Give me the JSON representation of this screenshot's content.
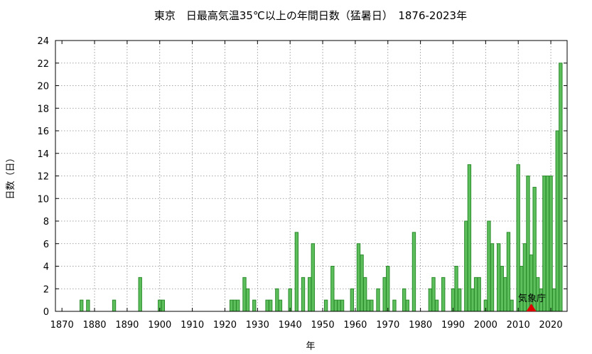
{
  "chart_data": {
    "type": "bar",
    "title": "東京　日最高気温35℃以上の年間日数（猛暑日）　1876-2023年",
    "xlabel": "年",
    "ylabel": "日数（日）",
    "xlim": [
      1868,
      2025
    ],
    "ylim": [
      0,
      24
    ],
    "x_ticks": [
      1870,
      1880,
      1890,
      1900,
      1910,
      1920,
      1930,
      1940,
      1950,
      1960,
      1970,
      1980,
      1990,
      2000,
      2010,
      2020
    ],
    "y_ticks": [
      0,
      2,
      4,
      6,
      8,
      10,
      12,
      14,
      16,
      18,
      20,
      22,
      24
    ],
    "grid": true,
    "bar_color": "#5cbf5c",
    "bar_edge_color": "#2a8a2a",
    "annotation": {
      "label": "気象庁",
      "x": 2014,
      "marker_color": "#dd0000"
    },
    "points": [
      {
        "x": 1876,
        "y": 1
      },
      {
        "x": 1878,
        "y": 1
      },
      {
        "x": 1886,
        "y": 1
      },
      {
        "x": 1894,
        "y": 3
      },
      {
        "x": 1900,
        "y": 1
      },
      {
        "x": 1901,
        "y": 1
      },
      {
        "x": 1922,
        "y": 1
      },
      {
        "x": 1923,
        "y": 1
      },
      {
        "x": 1924,
        "y": 1
      },
      {
        "x": 1926,
        "y": 3
      },
      {
        "x": 1927,
        "y": 2
      },
      {
        "x": 1929,
        "y": 1
      },
      {
        "x": 1933,
        "y": 1
      },
      {
        "x": 1934,
        "y": 1
      },
      {
        "x": 1936,
        "y": 2
      },
      {
        "x": 1937,
        "y": 1
      },
      {
        "x": 1940,
        "y": 2
      },
      {
        "x": 1942,
        "y": 7
      },
      {
        "x": 1944,
        "y": 3
      },
      {
        "x": 1946,
        "y": 3
      },
      {
        "x": 1947,
        "y": 6
      },
      {
        "x": 1951,
        "y": 1
      },
      {
        "x": 1953,
        "y": 4
      },
      {
        "x": 1954,
        "y": 1
      },
      {
        "x": 1955,
        "y": 1
      },
      {
        "x": 1956,
        "y": 1
      },
      {
        "x": 1959,
        "y": 2
      },
      {
        "x": 1961,
        "y": 6
      },
      {
        "x": 1962,
        "y": 5
      },
      {
        "x": 1963,
        "y": 3
      },
      {
        "x": 1964,
        "y": 1
      },
      {
        "x": 1965,
        "y": 1
      },
      {
        "x": 1967,
        "y": 2
      },
      {
        "x": 1969,
        "y": 3
      },
      {
        "x": 1970,
        "y": 4
      },
      {
        "x": 1972,
        "y": 1
      },
      {
        "x": 1975,
        "y": 2
      },
      {
        "x": 1976,
        "y": 1
      },
      {
        "x": 1978,
        "y": 7
      },
      {
        "x": 1983,
        "y": 2
      },
      {
        "x": 1984,
        "y": 3
      },
      {
        "x": 1985,
        "y": 1
      },
      {
        "x": 1987,
        "y": 3
      },
      {
        "x": 1990,
        "y": 2
      },
      {
        "x": 1991,
        "y": 4
      },
      {
        "x": 1992,
        "y": 2
      },
      {
        "x": 1994,
        "y": 8
      },
      {
        "x": 1995,
        "y": 13
      },
      {
        "x": 1996,
        "y": 2
      },
      {
        "x": 1997,
        "y": 3
      },
      {
        "x": 1998,
        "y": 3
      },
      {
        "x": 2000,
        "y": 1
      },
      {
        "x": 2001,
        "y": 8
      },
      {
        "x": 2002,
        "y": 6
      },
      {
        "x": 2004,
        "y": 6
      },
      {
        "x": 2005,
        "y": 4
      },
      {
        "x": 2006,
        "y": 3
      },
      {
        "x": 2007,
        "y": 7
      },
      {
        "x": 2008,
        "y": 1
      },
      {
        "x": 2010,
        "y": 13
      },
      {
        "x": 2011,
        "y": 4
      },
      {
        "x": 2012,
        "y": 6
      },
      {
        "x": 2013,
        "y": 12
      },
      {
        "x": 2014,
        "y": 5
      },
      {
        "x": 2015,
        "y": 11
      },
      {
        "x": 2016,
        "y": 3
      },
      {
        "x": 2017,
        "y": 2
      },
      {
        "x": 2018,
        "y": 12
      },
      {
        "x": 2019,
        "y": 12
      },
      {
        "x": 2020,
        "y": 12
      },
      {
        "x": 2021,
        "y": 2
      },
      {
        "x": 2022,
        "y": 16
      },
      {
        "x": 2023,
        "y": 22
      }
    ]
  }
}
